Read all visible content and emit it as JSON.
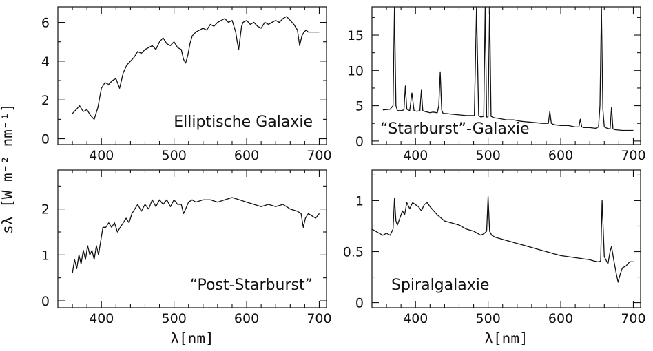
{
  "figure": {
    "ylabel": "sλ [W m⁻² nm⁻¹]",
    "xlabel": "λ[nm]"
  },
  "chart_data": [
    {
      "type": "line",
      "label": "Elliptische Galaxie",
      "label_position": "bottom-right",
      "xlim": [
        340,
        710
      ],
      "ylim": [
        -0.3,
        6.8
      ],
      "xticks": [
        400,
        500,
        600,
        700
      ],
      "yticks": [
        0,
        2,
        4,
        6
      ],
      "show_xtick_labels": true,
      "show_xlabel": false,
      "x": [
        360,
        365,
        370,
        375,
        380,
        385,
        390,
        395,
        400,
        405,
        410,
        415,
        420,
        425,
        430,
        435,
        440,
        445,
        450,
        455,
        460,
        465,
        470,
        475,
        480,
        485,
        490,
        495,
        500,
        505,
        510,
        513,
        516,
        519,
        522,
        525,
        530,
        535,
        540,
        545,
        550,
        555,
        560,
        565,
        570,
        575,
        580,
        585,
        587,
        589,
        591,
        593,
        595,
        600,
        605,
        610,
        615,
        620,
        625,
        630,
        635,
        640,
        645,
        650,
        655,
        660,
        665,
        670,
        673,
        676,
        679,
        682,
        685,
        690,
        695,
        700
      ],
      "y": [
        1.3,
        1.5,
        1.7,
        1.4,
        1.5,
        1.2,
        1.0,
        1.6,
        2.6,
        2.9,
        2.8,
        3.0,
        3.1,
        2.6,
        3.4,
        3.8,
        4.0,
        4.2,
        4.5,
        4.4,
        4.6,
        4.7,
        4.8,
        4.6,
        5.0,
        5.2,
        4.9,
        4.8,
        5.0,
        4.7,
        4.6,
        4.1,
        3.9,
        4.3,
        4.9,
        5.3,
        5.5,
        5.6,
        5.7,
        5.6,
        5.9,
        5.8,
        6.0,
        6.1,
        6.2,
        6.0,
        6.1,
        5.5,
        5.0,
        4.6,
        5.2,
        5.8,
        6.0,
        6.1,
        5.9,
        6.0,
        5.8,
        5.7,
        6.0,
        5.9,
        6.0,
        6.1,
        6.0,
        6.2,
        6.3,
        6.1,
        5.9,
        5.6,
        4.8,
        5.3,
        5.5,
        5.6,
        5.5,
        5.5,
        5.5,
        5.5
      ]
    },
    {
      "type": "line",
      "label": "“Starburst”-Galaxie",
      "label_position": "bottom-left",
      "xlim": [
        340,
        710
      ],
      "ylim": [
        -0.5,
        19
      ],
      "xticks": [
        400,
        500,
        600,
        700
      ],
      "yticks": [
        0,
        5,
        10,
        15
      ],
      "show_xtick_labels": true,
      "show_xlabel": false,
      "x": [
        355,
        365,
        369,
        371,
        373,
        375,
        380,
        384,
        386,
        388,
        392,
        395,
        398,
        402,
        406,
        408,
        410,
        412,
        416,
        420,
        424,
        430,
        432,
        434,
        436,
        438,
        442,
        450,
        460,
        470,
        478,
        481,
        484,
        487,
        490,
        494,
        496,
        498,
        500,
        502,
        504,
        508,
        515,
        525,
        535,
        545,
        555,
        565,
        575,
        583,
        585,
        587,
        589,
        592,
        600,
        610,
        620,
        625,
        627,
        629,
        632,
        640,
        648,
        652,
        654,
        656,
        658,
        660,
        664,
        668,
        670,
        672,
        675,
        685,
        695,
        700
      ],
      "y": [
        4.4,
        4.5,
        5.0,
        19.0,
        5.0,
        4.3,
        4.3,
        4.4,
        7.8,
        4.5,
        4.3,
        6.8,
        4.3,
        4.2,
        4.3,
        7.2,
        4.3,
        4.2,
        4.1,
        4.0,
        4.1,
        4.0,
        5.0,
        9.8,
        4.4,
        3.9,
        3.9,
        3.8,
        3.7,
        3.6,
        3.6,
        3.6,
        19.0,
        3.6,
        3.4,
        3.5,
        19.0,
        3.4,
        3.4,
        19.0,
        3.5,
        3.3,
        3.2,
        3.0,
        3.0,
        2.8,
        2.7,
        2.6,
        2.5,
        2.5,
        4.2,
        2.5,
        2.4,
        2.3,
        2.2,
        2.2,
        2.0,
        2.0,
        3.1,
        2.0,
        1.9,
        1.9,
        1.8,
        2.0,
        5.0,
        19.0,
        4.5,
        2.0,
        1.8,
        1.7,
        4.8,
        1.7,
        1.6,
        1.5,
        1.5,
        1.5
      ]
    },
    {
      "type": "line",
      "label": "“Post-Starburst”",
      "label_position": "bottom-right",
      "xlim": [
        340,
        710
      ],
      "ylim": [
        -0.15,
        2.85
      ],
      "xticks": [
        400,
        500,
        600,
        700
      ],
      "yticks": [
        0,
        1,
        2
      ],
      "show_xtick_labels": true,
      "show_xlabel": true,
      "x": [
        360,
        363,
        366,
        369,
        372,
        375,
        378,
        381,
        384,
        387,
        390,
        393,
        396,
        399,
        402,
        406,
        410,
        414,
        418,
        422,
        426,
        430,
        434,
        438,
        442,
        446,
        450,
        455,
        460,
        465,
        470,
        475,
        480,
        485,
        490,
        495,
        500,
        505,
        510,
        513,
        516,
        520,
        525,
        530,
        540,
        550,
        560,
        570,
        580,
        590,
        600,
        610,
        620,
        630,
        640,
        650,
        660,
        670,
        675,
        678,
        681,
        685,
        690,
        695,
        700
      ],
      "y": [
        0.6,
        0.9,
        0.7,
        1.0,
        0.8,
        1.1,
        0.9,
        1.2,
        1.0,
        1.1,
        0.9,
        1.2,
        1.0,
        1.3,
        1.6,
        1.6,
        1.7,
        1.6,
        1.7,
        1.5,
        1.6,
        1.7,
        1.8,
        1.7,
        1.9,
        2.0,
        2.1,
        1.95,
        2.1,
        2.0,
        2.2,
        2.05,
        2.2,
        2.1,
        2.2,
        2.05,
        2.2,
        2.1,
        2.1,
        1.9,
        2.0,
        2.15,
        2.2,
        2.15,
        2.2,
        2.2,
        2.15,
        2.2,
        2.25,
        2.2,
        2.15,
        2.1,
        2.05,
        2.1,
        2.05,
        2.1,
        2.0,
        1.95,
        1.9,
        1.6,
        1.8,
        1.9,
        1.85,
        1.8,
        1.9
      ]
    },
    {
      "type": "line",
      "label": "Spiralgalaxie",
      "label_position": "bottom-left",
      "xlim": [
        340,
        710
      ],
      "ylim": [
        -0.05,
        1.3
      ],
      "xticks": [
        400,
        500,
        600,
        700
      ],
      "yticks": [
        0,
        0.5,
        1
      ],
      "show_xtick_labels": true,
      "show_xlabel": true,
      "x": [
        340,
        345,
        350,
        355,
        360,
        365,
        369,
        371,
        373,
        375,
        378,
        382,
        385,
        388,
        392,
        396,
        400,
        404,
        408,
        412,
        416,
        420,
        425,
        430,
        440,
        450,
        460,
        470,
        480,
        490,
        495,
        498,
        500,
        502,
        505,
        510,
        520,
        530,
        540,
        550,
        560,
        570,
        580,
        590,
        600,
        610,
        620,
        630,
        640,
        645,
        650,
        653,
        655,
        657,
        660,
        665,
        668,
        670,
        673,
        676,
        679,
        682,
        685,
        690,
        695,
        700
      ],
      "y": [
        0.72,
        0.7,
        0.68,
        0.66,
        0.68,
        0.66,
        0.72,
        1.02,
        0.8,
        0.76,
        0.82,
        0.9,
        0.86,
        0.98,
        0.92,
        0.98,
        0.96,
        0.94,
        0.9,
        0.96,
        0.98,
        0.94,
        0.9,
        0.86,
        0.8,
        0.78,
        0.76,
        0.72,
        0.7,
        0.66,
        0.68,
        0.7,
        1.04,
        0.7,
        0.66,
        0.64,
        0.62,
        0.6,
        0.58,
        0.56,
        0.54,
        0.52,
        0.5,
        0.48,
        0.46,
        0.45,
        0.44,
        0.43,
        0.42,
        0.41,
        0.4,
        0.4,
        0.41,
        1.0,
        0.45,
        0.38,
        0.5,
        0.55,
        0.42,
        0.3,
        0.2,
        0.28,
        0.34,
        0.36,
        0.4,
        0.4
      ]
    }
  ]
}
